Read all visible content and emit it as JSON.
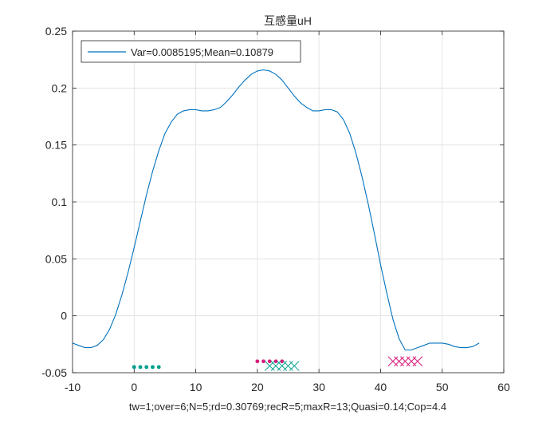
{
  "chart_data": {
    "type": "line",
    "title": "互感量uH",
    "xlabel": "tw=1;over=6;N=5;rd=0.30769;recR=5;maxR=13;Quasi=0.14;Cop=4.4",
    "ylabel": "",
    "xlim": [
      -10,
      60
    ],
    "ylim": [
      -0.05,
      0.25
    ],
    "xticks": [
      -10,
      0,
      10,
      20,
      30,
      40,
      50,
      60
    ],
    "yticks": [
      -0.05,
      0,
      0.05,
      0.1,
      0.15,
      0.2,
      0.25
    ],
    "xtick_labels": [
      "-10",
      "0",
      "10",
      "20",
      "30",
      "40",
      "50",
      "60"
    ],
    "ytick_labels": [
      "-0.05",
      "0",
      "0.05",
      "0.1",
      "0.15",
      "0.2",
      "0.25"
    ],
    "grid": true,
    "legend": {
      "location": "top-left",
      "entries": [
        "Var=0.0085195;Mean=0.10879"
      ]
    },
    "series": [
      {
        "name": "Var=0.0085195;Mean=0.10879",
        "color": "#0072BD",
        "x": [
          -10,
          -9,
          -8,
          -7,
          -6,
          -5,
          -4,
          -3,
          -2,
          -1,
          0,
          1,
          2,
          3,
          4,
          5,
          6,
          7,
          8,
          9,
          10,
          11,
          12,
          13,
          14,
          15,
          16,
          17,
          18,
          19,
          20,
          21,
          22,
          23,
          24,
          25,
          26,
          27,
          28,
          29,
          30,
          31,
          32,
          33,
          34,
          35,
          36,
          37,
          38,
          39,
          40,
          41,
          42,
          43,
          44,
          45,
          46,
          47,
          48,
          49,
          50,
          51,
          52,
          53,
          54,
          55,
          56
        ],
        "y": [
          -0.024,
          -0.026,
          -0.028,
          -0.028,
          -0.026,
          -0.021,
          -0.012,
          0.001,
          0.018,
          0.038,
          0.06,
          0.083,
          0.106,
          0.127,
          0.145,
          0.16,
          0.17,
          0.177,
          0.18,
          0.181,
          0.181,
          0.18,
          0.18,
          0.181,
          0.183,
          0.188,
          0.194,
          0.201,
          0.207,
          0.212,
          0.215,
          0.216,
          0.215,
          0.212,
          0.207,
          0.2,
          0.193,
          0.187,
          0.183,
          0.18,
          0.18,
          0.181,
          0.181,
          0.179,
          0.172,
          0.16,
          0.143,
          0.122,
          0.098,
          0.072,
          0.045,
          0.02,
          -0.003,
          -0.02,
          -0.03,
          -0.03,
          -0.028,
          -0.026,
          -0.024,
          -0.024,
          -0.024,
          -0.025,
          -0.027,
          -0.028,
          -0.028,
          -0.027,
          -0.024
        ]
      }
    ],
    "markers": [
      {
        "shape": "dot",
        "color": "#00A08C",
        "x": [
          0,
          1,
          2,
          3,
          4
        ],
        "y": [
          -0.045,
          -0.045,
          -0.045,
          -0.045,
          -0.045
        ]
      },
      {
        "shape": "dot",
        "color": "#D81B7A",
        "x": [
          20,
          21,
          22,
          23,
          24
        ],
        "y": [
          -0.04,
          -0.04,
          -0.04,
          -0.04,
          -0.04
        ]
      },
      {
        "shape": "cross",
        "color": "#00A08C",
        "x": [
          22,
          23,
          24,
          25,
          26
        ],
        "y": [
          -0.044,
          -0.044,
          -0.044,
          -0.044,
          -0.044
        ]
      },
      {
        "shape": "cross",
        "color": "#D81B7A",
        "x": [
          42,
          43,
          44,
          45,
          46
        ],
        "y": [
          -0.04,
          -0.04,
          -0.04,
          -0.04,
          -0.04
        ]
      }
    ]
  }
}
